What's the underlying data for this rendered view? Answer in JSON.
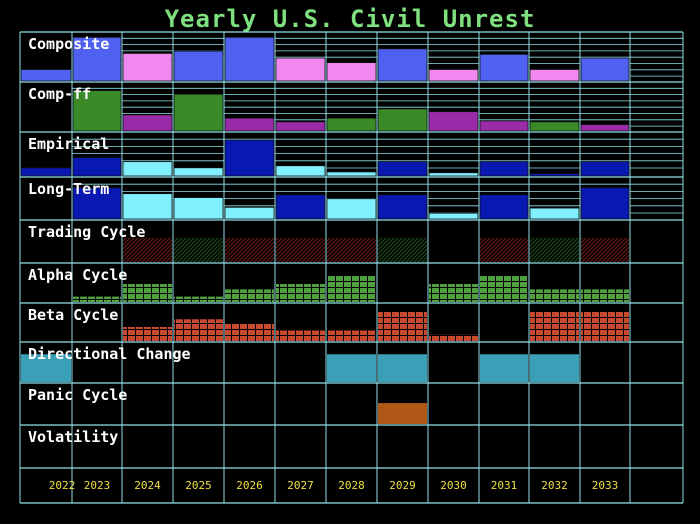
{
  "title": "Yearly U.S. Civil Unrest",
  "colors": {
    "grid": "#8fe0e8",
    "composite_high": "#5060f0",
    "composite_low": "#f088f0",
    "compff_high": "#3a8a28",
    "compff_low": "#9a2aa8",
    "dark_blue": "#0818b0",
    "light_blue": "#80f0ff",
    "trading_red": "#6a1818",
    "trading_green": "#1c4a18",
    "alpha": "#50a040",
    "beta": "#c84830",
    "directional": "#3aa0b8",
    "panic": "#b05818",
    "year_text": "#f0e040"
  },
  "chart_data": {
    "type": "bar",
    "title": "Yearly U.S. Civil Unrest",
    "years": [
      "2022",
      "2023",
      "2024",
      "2025",
      "2026",
      "2027",
      "2028",
      "2029",
      "2030",
      "2031",
      "2032",
      "2033"
    ],
    "rows": [
      {
        "name": "Composite",
        "kind": "bar",
        "values": [
          0.25,
          0.95,
          0.6,
          0.65,
          0.95,
          0.5,
          0.4,
          0.7,
          0.25,
          0.58,
          0.25,
          0.5
        ],
        "colors": [
          "high",
          "high",
          "low",
          "high",
          "high",
          "low",
          "low",
          "high",
          "low",
          "high",
          "low",
          "high"
        ]
      },
      {
        "name": "Comp-ff",
        "kind": "bar",
        "values": [
          0.0,
          0.88,
          0.35,
          0.8,
          0.28,
          0.2,
          0.28,
          0.48,
          0.42,
          0.22,
          0.2,
          0.14
        ],
        "colors": [
          "high",
          "high",
          "low",
          "high",
          "low",
          "low",
          "high",
          "high",
          "low",
          "low",
          "high",
          "low"
        ]
      },
      {
        "name": "Empirical",
        "kind": "bar",
        "values": [
          0.2,
          0.45,
          0.35,
          0.2,
          0.88,
          0.25,
          0.1,
          0.35,
          0.08,
          0.35,
          0.06,
          0.35
        ],
        "colors": [
          "dark",
          "dark",
          "light",
          "light",
          "dark",
          "light",
          "light",
          "dark",
          "light",
          "dark",
          "dark",
          "dark"
        ]
      },
      {
        "name": "Long-Term",
        "kind": "bar",
        "values": [
          0.0,
          0.8,
          0.65,
          0.55,
          0.3,
          0.62,
          0.52,
          0.62,
          0.15,
          0.62,
          0.28,
          0.8
        ],
        "colors": [
          "dark",
          "dark",
          "light",
          "light",
          "light",
          "dark",
          "light",
          "dark",
          "light",
          "dark",
          "light",
          "dark"
        ]
      },
      {
        "name": "Trading Cycle",
        "kind": "pattern",
        "values": [
          0,
          0,
          0.62,
          0.62,
          0.62,
          0.62,
          0.62,
          0.62,
          0,
          0.62,
          0.62,
          0.62
        ],
        "colors": [
          "",
          "",
          "red",
          "green",
          "red",
          "red",
          "red",
          "green",
          "",
          "red",
          "green",
          "red"
        ]
      },
      {
        "name": "Alpha Cycle",
        "kind": "brick",
        "values": [
          0,
          0.15,
          0.5,
          0.15,
          0.35,
          0.5,
          0.75,
          0,
          0.5,
          0.75,
          0.35,
          0.35
        ]
      },
      {
        "name": "Beta Cycle",
        "kind": "brick",
        "values": [
          0,
          0,
          0.4,
          0.62,
          0.5,
          0.3,
          0.3,
          0.85,
          0.18,
          0,
          0.85,
          0.85
        ]
      },
      {
        "name": "Directional Change",
        "kind": "block",
        "values": [
          0.75,
          0,
          0,
          0,
          0,
          0,
          0.75,
          0.75,
          0,
          0.75,
          0.75,
          0
        ],
        "colors": [
          "directional",
          "",
          "",
          "",
          "",
          "",
          "directional",
          "directional",
          "",
          "directional",
          "directional",
          ""
        ]
      },
      {
        "name": "Panic Cycle",
        "kind": "block",
        "values": [
          0,
          0,
          0,
          0,
          0,
          0,
          0,
          0.55,
          0,
          0,
          0,
          0
        ],
        "colors": [
          "",
          "",
          "",
          "",
          "",
          "",
          "",
          "panic",
          "",
          "",
          "",
          ""
        ]
      },
      {
        "name": "Volatility",
        "kind": "block",
        "values": [
          0,
          0,
          0,
          0,
          0,
          0,
          0,
          0,
          0,
          0,
          0,
          0
        ],
        "colors": [
          "",
          "",
          "",
          "",
          "",
          "",
          "",
          "",
          "",
          "",
          "",
          ""
        ]
      }
    ]
  }
}
